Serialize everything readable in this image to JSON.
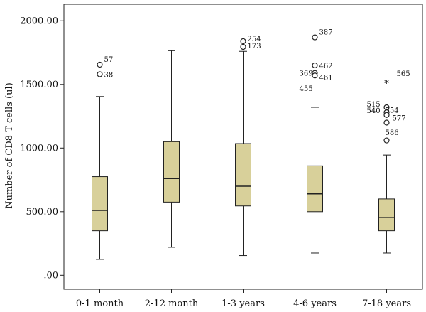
{
  "chart_data": {
    "type": "boxplot",
    "ylabel": "Number of CD8 T cells (ul)",
    "xlabel": "",
    "ylim": [
      -110,
      2130
    ],
    "yticks": [
      0,
      500,
      1000,
      1500,
      2000
    ],
    "ytick_labels": [
      ".00",
      "500.00",
      "1000.00",
      "1500.00",
      "2000.00"
    ],
    "grid": false,
    "box_color": "#d8d09a",
    "line_color": "#222222",
    "categories": [
      "0-1 month",
      "2-12 month",
      "1-3 years",
      "4-6 years",
      "7-18 years"
    ],
    "boxes": [
      {
        "min": 125,
        "q1": 350,
        "median": 510,
        "q3": 775,
        "max": 1405,
        "outliers": [
          {
            "value": 1655,
            "label": "57",
            "marker": "circle"
          },
          {
            "value": 1580,
            "label": "38",
            "marker": "circle"
          }
        ]
      },
      {
        "min": 220,
        "q1": 575,
        "median": 760,
        "q3": 1050,
        "max": 1765,
        "outliers": []
      },
      {
        "min": 155,
        "q1": 545,
        "median": 700,
        "q3": 1035,
        "max": 1760,
        "outliers": [
          {
            "value": 1840,
            "label": "254",
            "marker": "circle"
          },
          {
            "value": 1795,
            "label": "173",
            "marker": "circle"
          }
        ]
      },
      {
        "min": 175,
        "q1": 500,
        "median": 640,
        "q3": 860,
        "max": 1320,
        "outliers": [
          {
            "value": 1870,
            "label": "387",
            "marker": "circle"
          },
          {
            "value": 1650,
            "label": "462",
            "marker": "circle"
          },
          {
            "value": 1590,
            "label": "369",
            "marker": "circle"
          },
          {
            "value": 1570,
            "label": "461",
            "marker": "circle"
          },
          {
            "value": 1470,
            "label": "455",
            "marker": "none"
          }
        ]
      },
      {
        "min": 175,
        "q1": 350,
        "median": 455,
        "q3": 600,
        "max": 945,
        "outliers": [
          {
            "value": 1520,
            "label": "565",
            "marker": "star"
          },
          {
            "value": 1320,
            "label": "515",
            "marker": "circle"
          },
          {
            "value": 1300,
            "label": "554",
            "marker": "none"
          },
          {
            "value": 1280,
            "label": "540",
            "marker": "circle"
          },
          {
            "value": 1260,
            "label": "577",
            "marker": "circle"
          },
          {
            "value": 1200,
            "label": "",
            "marker": "circle"
          },
          {
            "value": 1120,
            "label": "586",
            "marker": "none"
          },
          {
            "value": 1060,
            "label": "",
            "marker": "circle"
          }
        ]
      }
    ]
  }
}
